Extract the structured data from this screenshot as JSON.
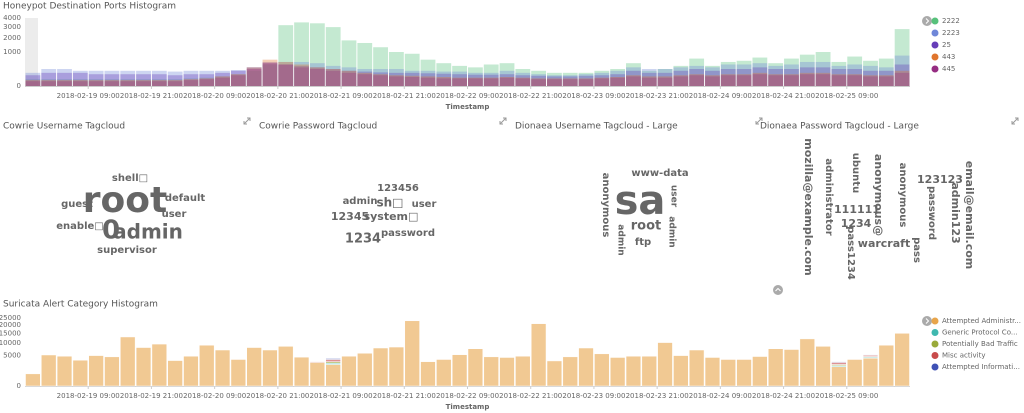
{
  "chart_data": [
    {
      "type": "bar",
      "title": "Honeypot Destination Ports Histogram",
      "xlabel": "Timestamp",
      "scale": "sqrt",
      "stacked": false,
      "categories": [
        null,
        null,
        null,
        null,
        "2018-02-19 09:00",
        null,
        null,
        null,
        "2018-02-19 21:00",
        null,
        null,
        null,
        "2018-02-20 09:00",
        null,
        null,
        null,
        "2018-02-20 21:00",
        null,
        null,
        null,
        "2018-02-21 09:00",
        null,
        null,
        null,
        "2018-02-21 21:00",
        null,
        null,
        null,
        "2018-02-22 09:00",
        null,
        null,
        null,
        "2018-02-22 21:00",
        null,
        null,
        null,
        "2018-02-23 09:00",
        null,
        null,
        null,
        "2018-02-23 21:00",
        null,
        null,
        null,
        "2018-02-24 09:00",
        null,
        null,
        null,
        "2018-02-24 21:00",
        null,
        null,
        null,
        "2018-02-25 09:00",
        null,
        null,
        null
      ],
      "ylim": [
        0,
        4000
      ],
      "yticks": [
        0,
        1000,
        2000,
        3000,
        4000
      ],
      "series": [
        {
          "name": "2222",
          "color": "#57c17b",
          "values": [
            40,
            40,
            40,
            40,
            40,
            40,
            40,
            40,
            40,
            40,
            50,
            60,
            80,
            120,
            200,
            400,
            3200,
            3500,
            3400,
            3000,
            1800,
            1600,
            1300,
            1000,
            900,
            600,
            450,
            350,
            300,
            400,
            450,
            250,
            200,
            150,
            150,
            150,
            200,
            250,
            450,
            200,
            250,
            350,
            650,
            350,
            500,
            550,
            700,
            450,
            650,
            850,
            1000,
            500,
            750,
            550,
            650,
            2800
          ]
        },
        {
          "name": "2223",
          "color": "#6f87d8",
          "values": [
            150,
            250,
            250,
            200,
            200,
            200,
            200,
            200,
            200,
            180,
            200,
            200,
            200,
            220,
            300,
            450,
            500,
            500,
            450,
            350,
            300,
            250,
            250,
            250,
            200,
            200,
            180,
            180,
            150,
            150,
            200,
            150,
            120,
            100,
            100,
            120,
            150,
            200,
            300,
            250,
            250,
            300,
            350,
            300,
            400,
            400,
            450,
            350,
            400,
            500,
            500,
            350,
            400,
            350,
            300,
            800
          ]
        },
        {
          "name": "25",
          "color": "#663db8",
          "values": [
            100,
            150,
            150,
            150,
            120,
            120,
            120,
            120,
            120,
            100,
            120,
            120,
            150,
            200,
            300,
            500,
            400,
            350,
            300,
            250,
            200,
            180,
            160,
            150,
            150,
            140,
            130,
            120,
            110,
            110,
            120,
            100,
            90,
            80,
            80,
            90,
            100,
            120,
            200,
            150,
            150,
            200,
            250,
            200,
            250,
            250,
            300,
            250,
            250,
            300,
            300,
            250,
            250,
            200,
            200,
            400
          ]
        },
        {
          "name": "443",
          "color": "#e0752d",
          "values": [
            30,
            30,
            30,
            30,
            30,
            30,
            30,
            30,
            30,
            30,
            40,
            50,
            80,
            120,
            300,
            600,
            500,
            400,
            300,
            250,
            200,
            150,
            120,
            100,
            90,
            80,
            70,
            60,
            60,
            60,
            70,
            60,
            50,
            50,
            50,
            50,
            60,
            70,
            100,
            80,
            80,
            100,
            120,
            100,
            120,
            120,
            150,
            120,
            120,
            150,
            150,
            120,
            120,
            100,
            100,
            200
          ]
        },
        {
          "name": "445",
          "color": "#962d82",
          "values": [
            20,
            20,
            20,
            20,
            20,
            20,
            20,
            20,
            20,
            20,
            30,
            40,
            60,
            100,
            250,
            450,
            400,
            300,
            250,
            200,
            150,
            120,
            100,
            80,
            70,
            60,
            50,
            50,
            50,
            50,
            60,
            50,
            40,
            40,
            40,
            40,
            50,
            60,
            80,
            60,
            60,
            80,
            100,
            80,
            100,
            100,
            120,
            100,
            100,
            120,
            120,
            100,
            100,
            80,
            80,
            150
          ]
        }
      ]
    },
    {
      "type": "tagcloud",
      "title": "Cowrie Username Tagcloud",
      "words": [
        {
          "text": "root",
          "color": "#57c17b"
        },
        {
          "text": "admin",
          "color": "#6f87d8"
        },
        {
          "text": "0",
          "color": "#6f87d8"
        },
        {
          "text": "shell□",
          "color": "#9c40c0"
        },
        {
          "text": "guest",
          "color": "#d9502c"
        },
        {
          "text": "default",
          "color": "#7eb26d"
        },
        {
          "text": "user",
          "color": "#447ebc"
        },
        {
          "text": "enable□",
          "color": "#9ac48a"
        },
        {
          "text": "supervisor",
          "color": "#bf3e63"
        }
      ]
    },
    {
      "type": "tagcloud",
      "title": "Cowrie Password Tagcloud",
      "words": [
        {
          "text": "123456",
          "color": "#9c40c0"
        },
        {
          "text": "admin",
          "color": "#447ebc"
        },
        {
          "text": "sh□",
          "color": "#447ebc"
        },
        {
          "text": "user",
          "color": "#447ebc"
        },
        {
          "text": "12345",
          "color": "#57a83d"
        },
        {
          "text": "system□",
          "color": "#a5a53a"
        },
        {
          "text": "1234",
          "color": "#57a83d"
        },
        {
          "text": "password",
          "color": "#9c40c0"
        }
      ]
    },
    {
      "type": "tagcloud",
      "title": "Dionaea Username Tagcloud - Large",
      "words": [
        {
          "text": "sa",
          "color": "#3fb8af"
        },
        {
          "text": "www-data",
          "color": "#9c40c0"
        },
        {
          "text": "root",
          "color": "#57a83d"
        },
        {
          "text": "ftp",
          "color": "#57a83d"
        },
        {
          "text": "user",
          "color": "#447ebc"
        },
        {
          "text": "admin",
          "color": "#447ebc"
        },
        {
          "text": "anonymous",
          "color": "#d9702c"
        },
        {
          "text": "admin",
          "color": "#447ebc"
        }
      ]
    },
    {
      "type": "tagcloud",
      "title": "Dionaea Password Tagcloud - Large",
      "words": [
        {
          "text": "mozilla@example.com",
          "color": "#7eb26d"
        },
        {
          "text": "administrator",
          "color": "#d9502c"
        },
        {
          "text": "ubuntu",
          "color": "#9c40c0"
        },
        {
          "text": "111111",
          "color": "#a5a53a"
        },
        {
          "text": "1234",
          "color": "#57a83d"
        },
        {
          "text": "pass1234",
          "color": "#d93a6a"
        },
        {
          "text": "anonymous@",
          "color": "#57a83d"
        },
        {
          "text": "anonymous",
          "color": "#d9702c"
        },
        {
          "text": "warcraft",
          "color": "#57a83d"
        },
        {
          "text": "123123",
          "color": "#9c40c0"
        },
        {
          "text": "password",
          "color": "#9c40c0"
        },
        {
          "text": "pass",
          "color": "#9c40c0"
        },
        {
          "text": "admin123",
          "color": "#447ebc"
        },
        {
          "text": "email@email.com",
          "color": "#3fb8af"
        }
      ]
    },
    {
      "type": "bar",
      "title": "Suricata Alert Category Histogram",
      "xlabel": "Timestamp",
      "scale": "sqrt",
      "stacked": true,
      "categories": [
        null,
        null,
        null,
        null,
        "2018-02-19 09:00",
        null,
        null,
        null,
        "2018-02-19 21:00",
        null,
        null,
        null,
        "2018-02-20 09:00",
        null,
        null,
        null,
        "2018-02-20 21:00",
        null,
        null,
        null,
        "2018-02-21 09:00",
        null,
        null,
        null,
        "2018-02-21 21:00",
        null,
        null,
        null,
        "2018-02-22 09:00",
        null,
        null,
        null,
        "2018-02-22 21:00",
        null,
        null,
        null,
        "2018-02-23 09:00",
        null,
        null,
        null,
        "2018-02-23 21:00",
        null,
        null,
        null,
        "2018-02-24 09:00",
        null,
        null,
        null,
        "2018-02-24 21:00",
        null,
        null,
        null,
        "2018-02-25 09:00",
        null,
        null,
        null
      ],
      "ylim": [
        0,
        25000
      ],
      "yticks": [
        0,
        5000,
        10000,
        15000,
        20000,
        25000
      ],
      "series": [
        {
          "name": "Attempted Administr...",
          "color": "#e8a54b",
          "values": [
            800,
            5200,
            4800,
            3600,
            5000,
            4600,
            13000,
            8000,
            9500,
            3500,
            4800,
            9000,
            7000,
            3800,
            8000,
            7000,
            8500,
            4500,
            3000,
            2500,
            4800,
            5800,
            7800,
            8200,
            23000,
            3200,
            3800,
            5300,
            7500,
            4600,
            4400,
            4800,
            21000,
            3400,
            4600,
            7800,
            5600,
            4400,
            4800,
            4800,
            10200,
            5000,
            7000,
            4400,
            3800,
            3800,
            4700,
            7500,
            7200,
            12000,
            8500,
            2000,
            3800,
            4200,
            9000,
            15000
          ]
        },
        {
          "name": "Generic Protocol Co...",
          "color": "#3fb8af",
          "values": [
            0,
            0,
            0,
            0,
            0,
            0,
            0,
            0,
            0,
            0,
            0,
            0,
            0,
            0,
            0,
            0,
            0,
            0,
            0,
            300,
            0,
            0,
            0,
            0,
            0,
            0,
            0,
            0,
            0,
            0,
            0,
            0,
            0,
            0,
            0,
            0,
            0,
            0,
            0,
            0,
            0,
            0,
            0,
            0,
            0,
            0,
            0,
            0,
            0,
            0,
            0,
            200,
            0,
            300,
            0,
            0
          ]
        },
        {
          "name": "Potentially Bad Traffic",
          "color": "#9aaa3a",
          "values": [
            0,
            0,
            0,
            0,
            0,
            0,
            0,
            0,
            0,
            0,
            0,
            0,
            0,
            0,
            0,
            0,
            0,
            0,
            0,
            400,
            0,
            0,
            0,
            0,
            0,
            0,
            0,
            0,
            0,
            0,
            0,
            0,
            0,
            0,
            0,
            0,
            0,
            0,
            0,
            0,
            0,
            0,
            0,
            0,
            0,
            0,
            0,
            0,
            0,
            0,
            0,
            300,
            0,
            200,
            0,
            0
          ]
        },
        {
          "name": "Misc activity",
          "color": "#c84b4b",
          "values": [
            0,
            0,
            0,
            0,
            0,
            0,
            0,
            0,
            0,
            0,
            0,
            0,
            0,
            0,
            0,
            0,
            0,
            0,
            200,
            600,
            0,
            0,
            0,
            0,
            0,
            0,
            0,
            0,
            0,
            0,
            0,
            0,
            0,
            0,
            0,
            0,
            0,
            0,
            0,
            0,
            0,
            0,
            0,
            0,
            0,
            0,
            0,
            0,
            0,
            0,
            0,
            500,
            0,
            400,
            0,
            0
          ]
        },
        {
          "name": "Attempted Informati...",
          "color": "#3f51b5",
          "values": [
            0,
            0,
            0,
            0,
            0,
            0,
            0,
            0,
            0,
            0,
            0,
            0,
            0,
            0,
            0,
            0,
            0,
            0,
            0,
            300,
            0,
            0,
            0,
            0,
            0,
            0,
            0,
            0,
            0,
            0,
            0,
            0,
            0,
            0,
            0,
            0,
            0,
            0,
            0,
            0,
            0,
            0,
            0,
            0,
            0,
            0,
            0,
            0,
            0,
            0,
            0,
            200,
            0,
            200,
            0,
            0
          ]
        }
      ]
    }
  ]
}
